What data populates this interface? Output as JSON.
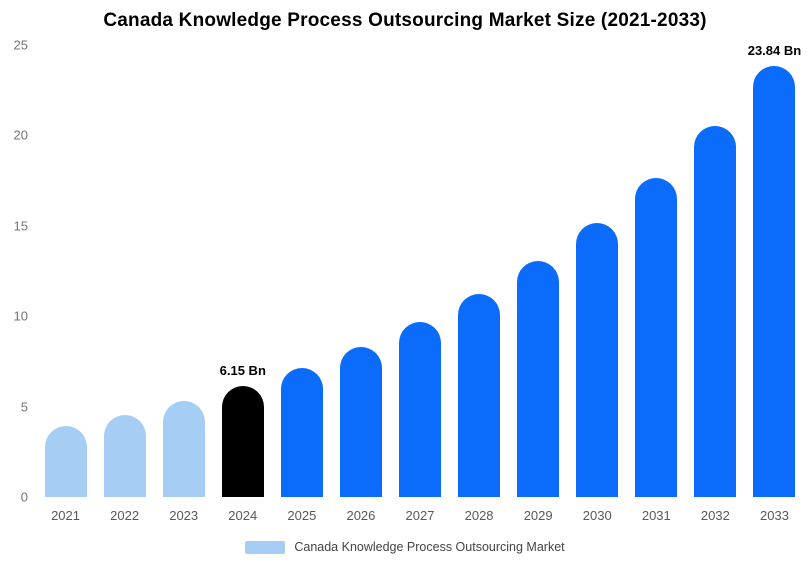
{
  "chart_data": {
    "type": "bar",
    "title": "Canada Knowledge Process Outsourcing Market Size (2021-2033)",
    "xlabel": "",
    "ylabel": "",
    "ylim": [
      0,
      25
    ],
    "yticks": [
      0,
      5,
      10,
      15,
      20,
      25
    ],
    "grid": false,
    "categories": [
      "2021",
      "2022",
      "2023",
      "2024",
      "2025",
      "2026",
      "2027",
      "2028",
      "2029",
      "2030",
      "2031",
      "2032",
      "2033"
    ],
    "values": [
      3.92,
      4.55,
      5.29,
      6.15,
      7.15,
      8.31,
      9.66,
      11.23,
      13.05,
      15.17,
      17.64,
      20.51,
      23.84
    ],
    "bar_colors": [
      "#A6CEF5",
      "#A6CEF5",
      "#A6CEF5",
      "#000000",
      "#0B6CFB",
      "#0B6CFB",
      "#0B6CFB",
      "#0B6CFB",
      "#0B6CFB",
      "#0B6CFB",
      "#0B6CFB",
      "#0B6CFB",
      "#0B6CFB"
    ],
    "data_labels": {
      "2024": "6.15 Bn",
      "2033": "23.84 Bn"
    },
    "legend": {
      "position": "bottom",
      "items": [
        {
          "label": "Canada Knowledge Process Outsourcing Market",
          "color": "#A6CEF5"
        }
      ]
    }
  },
  "palette": {
    "historical_bar": "#A6CEF5",
    "base_year_bar": "#000000",
    "forecast_bar": "#0B6CFB",
    "axis_text": "#757575",
    "background": "#FFFFFF"
  }
}
